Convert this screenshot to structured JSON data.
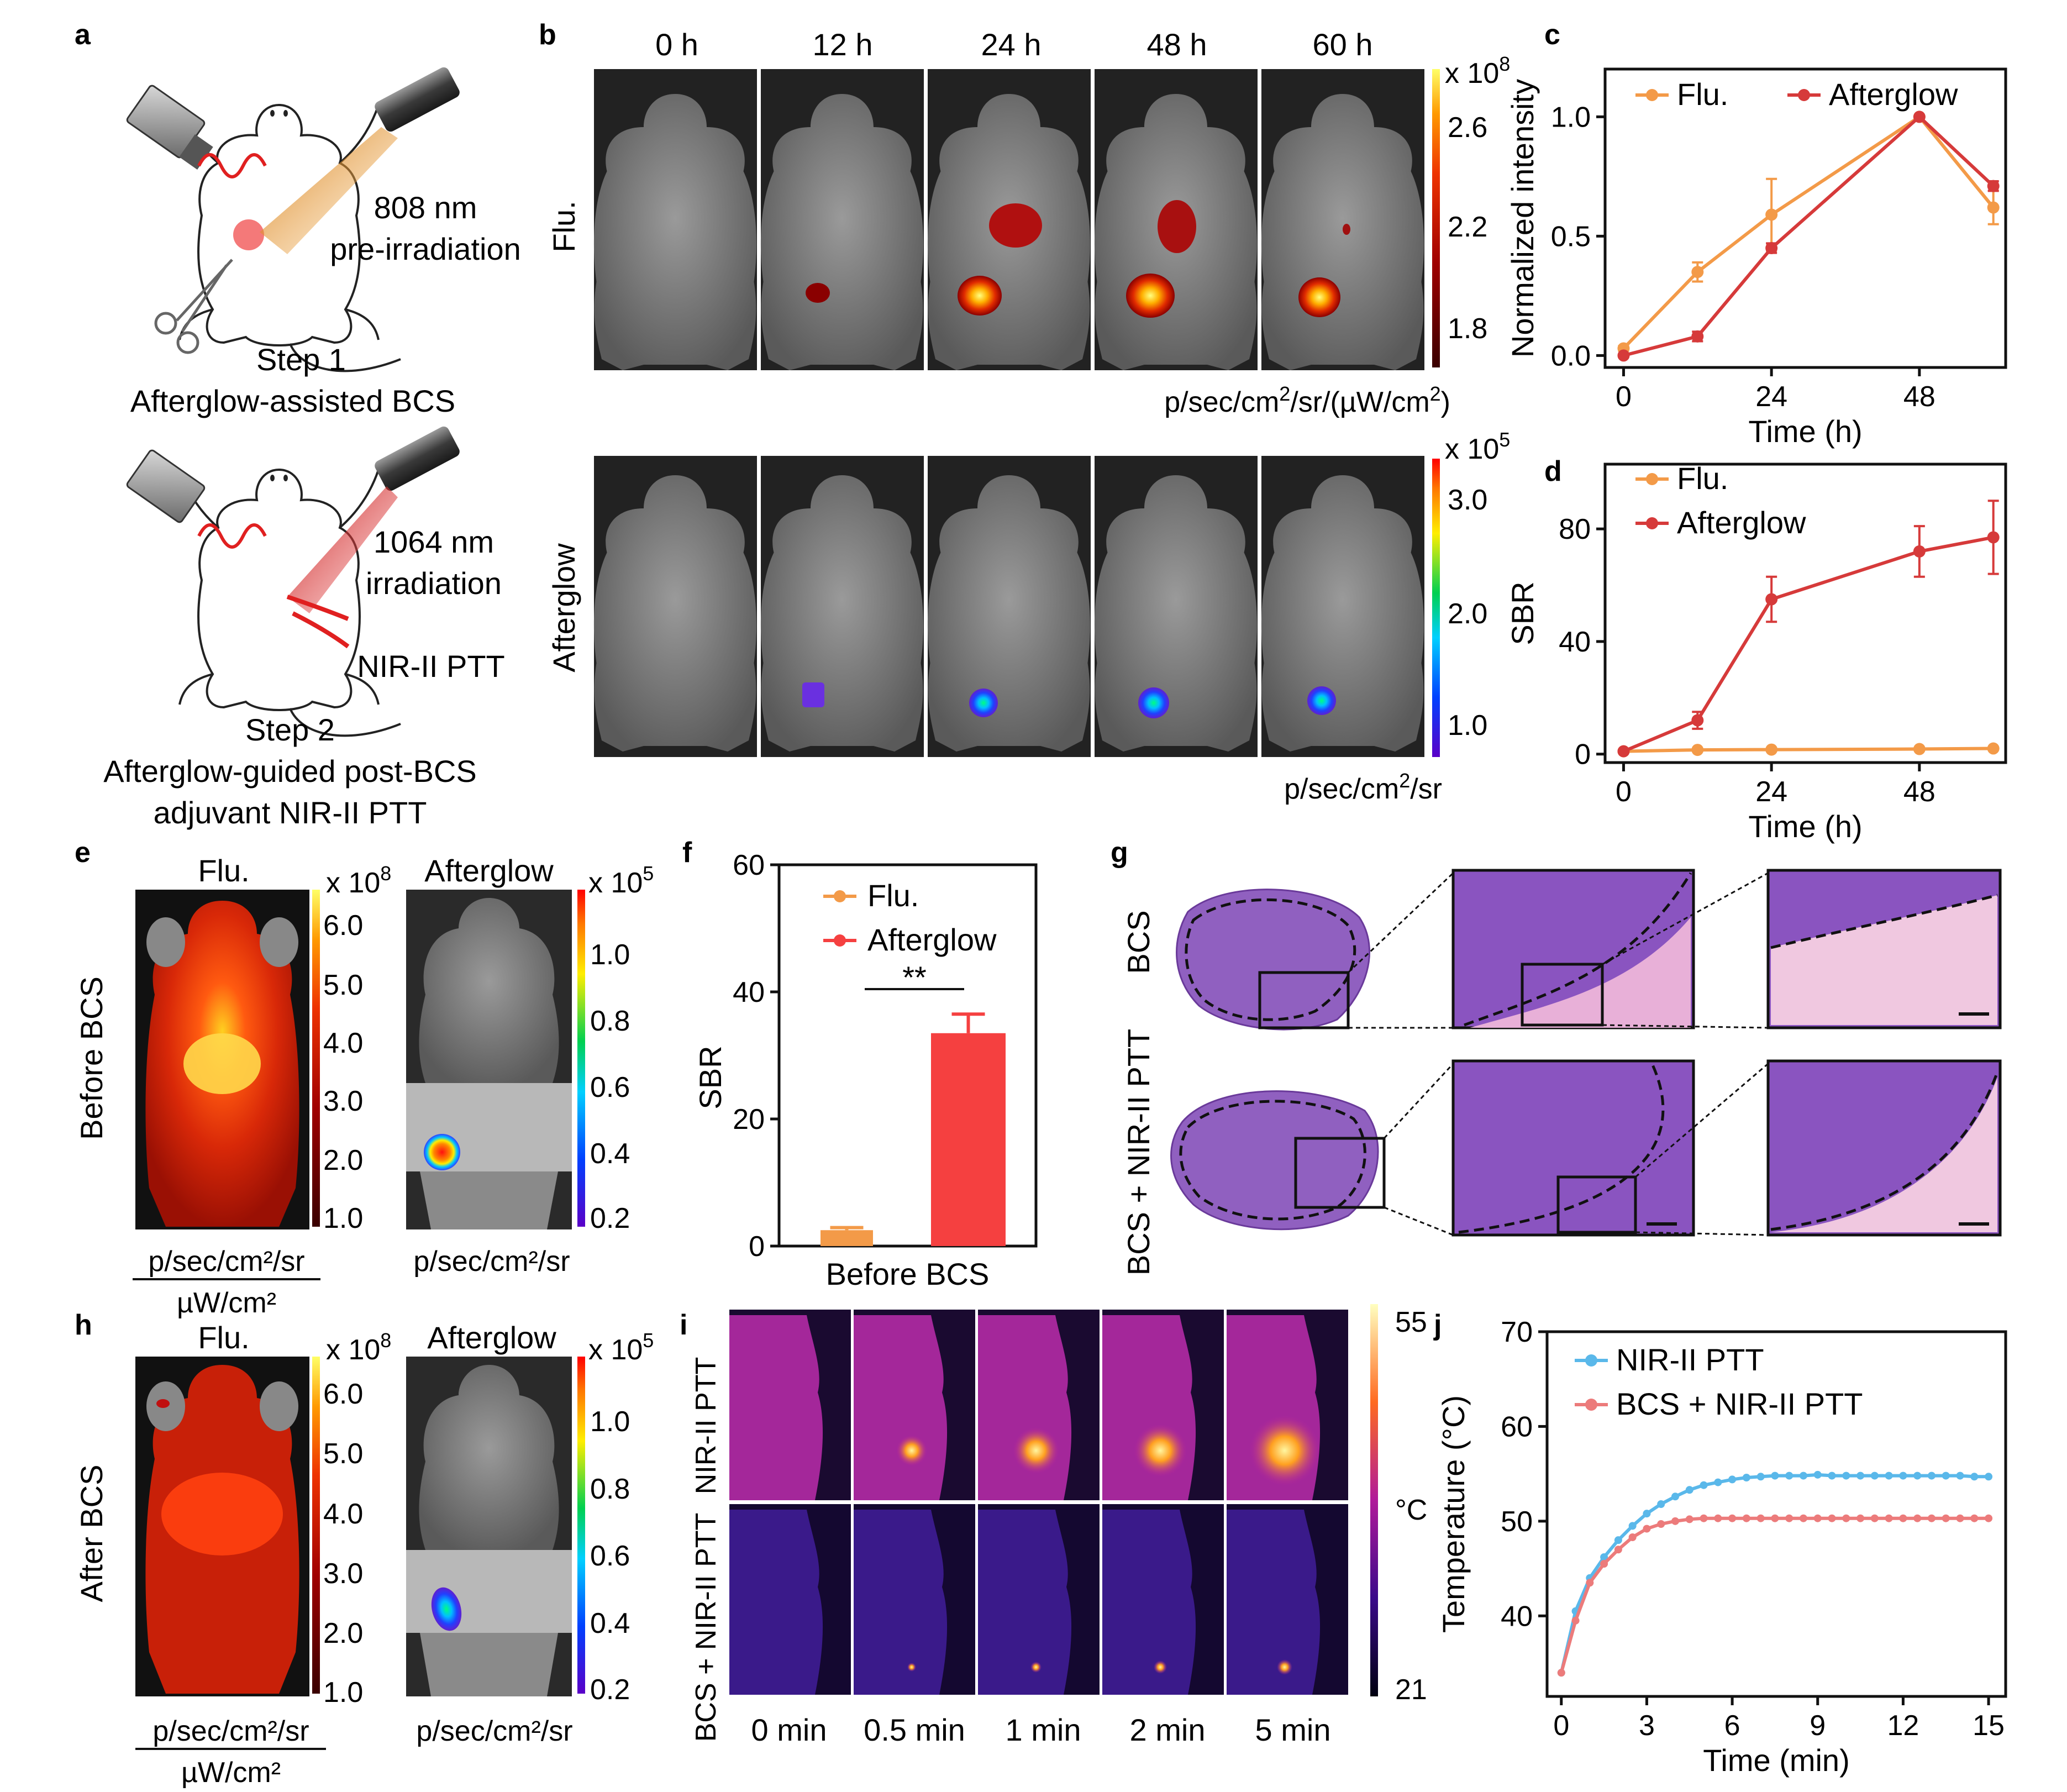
{
  "panel_letters": [
    "a",
    "b",
    "c",
    "d",
    "e",
    "f",
    "g",
    "h",
    "i",
    "j"
  ],
  "panel_a": {
    "step1_wavelength": "808 nm",
    "step1_mode": "pre-irradiation",
    "step1_label": "Step 1",
    "step1_caption": "Afterglow-assisted BCS",
    "step2_wavelength": "1064 nm",
    "step2_mode": "irradiation",
    "step2_therapy": "NIR-II PTT",
    "step2_label": "Step 2",
    "step2_caption_line1": "Afterglow-guided post-BCS",
    "step2_caption_line2": "adjuvant NIR-II PTT"
  },
  "panel_b": {
    "timepoints": [
      "0 h",
      "12 h",
      "24 h",
      "48 h",
      "60 h"
    ],
    "row_labels": [
      "Flu.",
      "Afterglow"
    ],
    "flu_scale": {
      "exponent": "x 10",
      "power": "8",
      "ticks": [
        "2.6",
        "2.2",
        "1.8"
      ],
      "unit_prefix": "p/sec/cm",
      "unit_mid": "/sr/(µW/cm",
      "unit_suffix": ")"
    },
    "afterglow_scale": {
      "exponent": "x 10",
      "power": "5",
      "ticks": [
        "3.0",
        "2.0",
        "1.0"
      ],
      "unit_prefix": "p/sec/cm",
      "unit_suffix": "/sr"
    }
  },
  "panel_e": {
    "row_label": "Before BCS",
    "flu_title": "Flu.",
    "afterglow_title": "Afterglow",
    "flu_scale": {
      "exponent": "x 10",
      "power": "8",
      "ticks": [
        "6.0",
        "5.0",
        "4.0",
        "3.0",
        "2.0",
        "1.0"
      ]
    },
    "afterglow_scale": {
      "exponent": "x 10",
      "power": "5",
      "ticks": [
        "1.0",
        "0.8",
        "0.6",
        "0.4",
        "0.2"
      ]
    },
    "flu_unit_num": "p/sec/cm²/sr",
    "flu_unit_den": "µW/cm²",
    "afterglow_unit": "p/sec/cm²/sr"
  },
  "panel_g": {
    "row_labels": [
      "BCS",
      "BCS + NIR-II PTT"
    ]
  },
  "panel_h": {
    "row_label": "After BCS",
    "flu_title": "Flu.",
    "afterglow_title": "Afterglow",
    "flu_scale": {
      "exponent": "x 10",
      "power": "8",
      "ticks": [
        "6.0",
        "5.0",
        "4.0",
        "3.0",
        "2.0",
        "1.0"
      ]
    },
    "afterglow_scale": {
      "exponent": "x 10",
      "power": "5",
      "ticks": [
        "1.0",
        "0.8",
        "0.6",
        "0.4",
        "0.2"
      ]
    },
    "flu_unit_num": "p/sec/cm²/sr",
    "flu_unit_den": "µW/cm²",
    "afterglow_unit": "p/sec/cm²/sr"
  },
  "panel_i": {
    "row_labels": [
      "NIR-II PTT",
      "BCS + NIR-II PTT"
    ],
    "timepoints": [
      "0 min",
      "0.5 min",
      "1 min",
      "2 min",
      "5 min"
    ],
    "scale_max": "55",
    "scale_min": "21",
    "scale_unit": "°C"
  },
  "chart_data": [
    {
      "id": "c",
      "type": "line",
      "xlabel": "Time (h)",
      "ylabel": "Normalized intensity",
      "xlim": [
        -3,
        62
      ],
      "ylim": [
        -0.05,
        1.2
      ],
      "xticks": [
        0,
        24,
        48
      ],
      "yticks": [
        0.0,
        0.5,
        1.0
      ],
      "ytick_labels": [
        "0.0",
        "0.5",
        "1.0"
      ],
      "legend": "top",
      "series": [
        {
          "name": "Flu.",
          "color": "#f39a48",
          "x": [
            0,
            12,
            24,
            48,
            60
          ],
          "y": [
            0.03,
            0.35,
            0.59,
            1.0,
            0.62
          ],
          "err": [
            0.01,
            0.04,
            0.15,
            0.0,
            0.07
          ]
        },
        {
          "name": "Afterglow",
          "color": "#d63a3a",
          "x": [
            0,
            12,
            24,
            48,
            60
          ],
          "y": [
            0.0,
            0.08,
            0.45,
            1.0,
            0.71
          ],
          "err": [
            0.005,
            0.02,
            0.02,
            0.0,
            0.02
          ]
        }
      ]
    },
    {
      "id": "d",
      "type": "line",
      "xlabel": "Time (h)",
      "ylabel": "SBR",
      "xlim": [
        -3,
        62
      ],
      "ylim": [
        -3,
        103
      ],
      "xticks": [
        0,
        24,
        48
      ],
      "yticks": [
        0,
        40,
        80
      ],
      "ytick_labels": [
        "0",
        "40",
        "80"
      ],
      "legend": "top-left",
      "series": [
        {
          "name": "Flu.",
          "color": "#f39a48",
          "x": [
            0,
            12,
            24,
            48,
            60
          ],
          "y": [
            1,
            1.5,
            1.6,
            1.8,
            2
          ],
          "err": [
            0.2,
            0.2,
            0.2,
            0.2,
            0.3
          ]
        },
        {
          "name": "Afterglow",
          "color": "#d63a3a",
          "x": [
            0,
            12,
            24,
            48,
            60
          ],
          "y": [
            1,
            12,
            55,
            72,
            77
          ],
          "err": [
            0.5,
            3,
            8,
            9,
            13
          ]
        }
      ]
    },
    {
      "id": "f",
      "type": "bar",
      "categories": [
        "Before BCS"
      ],
      "ylabel": "SBR",
      "ylim": [
        0,
        60
      ],
      "yticks": [
        0,
        20,
        40,
        60
      ],
      "ytick_labels": [
        "0",
        "20",
        "40",
        "60"
      ],
      "legend": "top",
      "significance": "**",
      "series": [
        {
          "name": "Flu.",
          "color": "#f39a48",
          "values": [
            2.5
          ],
          "err": [
            0.4
          ]
        },
        {
          "name": "Afterglow",
          "color": "#f54040",
          "values": [
            33.5
          ],
          "err": [
            3
          ]
        }
      ]
    },
    {
      "id": "j",
      "type": "line",
      "xlabel": "Time (min)",
      "ylabel": "Temperature (°C)",
      "xlim": [
        -0.5,
        15.6
      ],
      "ylim": [
        31.5,
        70
      ],
      "xticks": [
        0,
        3,
        6,
        9,
        12,
        15
      ],
      "yticks": [
        40,
        50,
        60,
        70
      ],
      "xtick_labels": [
        "0",
        "3",
        "6",
        "9",
        "12",
        "15"
      ],
      "ytick_labels": [
        "40",
        "50",
        "60",
        "70"
      ],
      "legend": "top-right",
      "series": [
        {
          "name": "NIR-II PTT",
          "color": "#5ab8ea",
          "x": [
            0,
            0.5,
            1,
            1.5,
            2,
            2.5,
            3,
            3.5,
            4,
            4.5,
            5,
            5.5,
            6,
            6.5,
            7,
            7.5,
            8,
            8.5,
            9,
            9.5,
            10,
            10.5,
            11,
            11.5,
            12,
            12.5,
            13,
            13.5,
            14,
            14.5,
            15
          ],
          "y": [
            34,
            40.5,
            44,
            46.2,
            48,
            49.5,
            50.8,
            51.8,
            52.6,
            53.3,
            53.8,
            54.1,
            54.4,
            54.6,
            54.7,
            54.8,
            54.8,
            54.8,
            54.9,
            54.8,
            54.8,
            54.8,
            54.8,
            54.8,
            54.8,
            54.8,
            54.8,
            54.8,
            54.8,
            54.7,
            54.7
          ]
        },
        {
          "name": "BCS + NIR-II PTT",
          "color": "#ec7b7b",
          "x": [
            0,
            0.5,
            1,
            1.5,
            2,
            2.5,
            3,
            3.5,
            4,
            4.5,
            5,
            5.5,
            6,
            6.5,
            7,
            7.5,
            8,
            8.5,
            9,
            9.5,
            10,
            10.5,
            11,
            11.5,
            12,
            12.5,
            13,
            13.5,
            14,
            14.5,
            15
          ],
          "y": [
            34,
            39.5,
            43.5,
            45.5,
            47,
            48.3,
            49.2,
            49.7,
            50,
            50.2,
            50.3,
            50.3,
            50.3,
            50.3,
            50.3,
            50.3,
            50.3,
            50.3,
            50.3,
            50.3,
            50.3,
            50.3,
            50.3,
            50.3,
            50.3,
            50.3,
            50.3,
            50.3,
            50.3,
            50.3,
            50.3
          ]
        }
      ]
    }
  ]
}
